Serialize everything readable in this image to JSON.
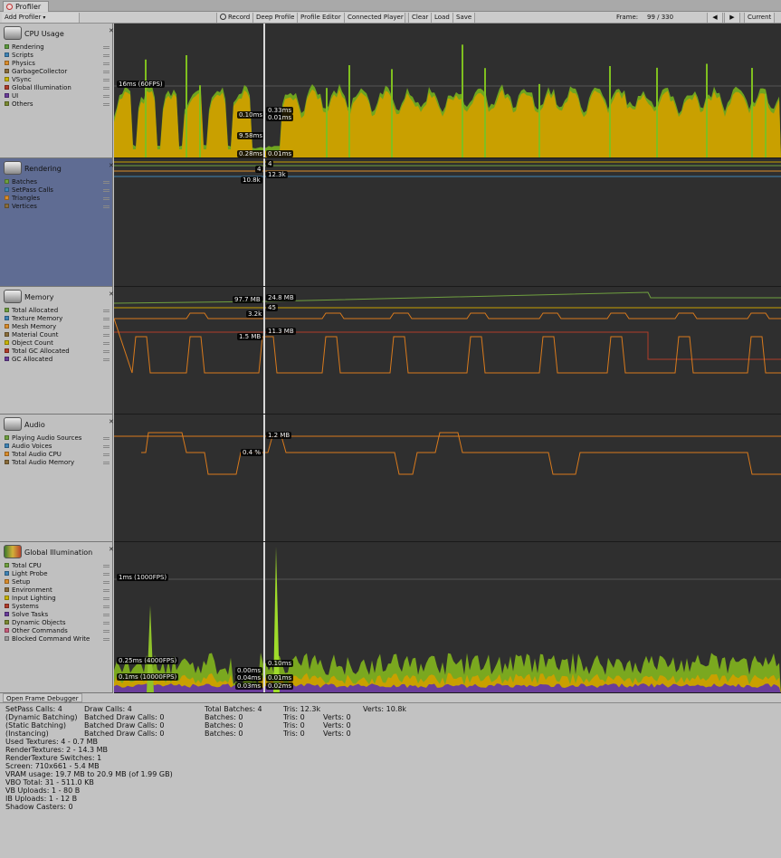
{
  "window": {
    "tab": "Profiler"
  },
  "toolbar": {
    "add_profiler": "Add Profiler",
    "record": "Record",
    "deep_profile": "Deep Profile",
    "profile_editor": "Profile Editor",
    "connected_player": "Connected Player",
    "clear": "Clear",
    "load": "Load",
    "save": "Save",
    "frame_label": "Frame:",
    "frame_value": "99 / 330",
    "prev": "◀",
    "next": "▶",
    "current": "Current"
  },
  "modules": {
    "cpu": {
      "title": "CPU Usage",
      "legend": [
        {
          "label": "Rendering",
          "color": "#5c9a3e"
        },
        {
          "label": "Scripts",
          "color": "#3f84b6"
        },
        {
          "label": "Physics",
          "color": "#d98c2b"
        },
        {
          "label": "GarbageCollector",
          "color": "#8a6d3b"
        },
        {
          "label": "VSync",
          "color": "#c9b400"
        },
        {
          "label": "Global Illumination",
          "color": "#b03c2a"
        },
        {
          "label": "UI",
          "color": "#6a3d9a"
        },
        {
          "label": "Others",
          "color": "#7a8a32"
        }
      ],
      "fps_line": "16ms (60FPS)",
      "labels": [
        "0.10ms",
        "0.33ms",
        "0.01ms",
        "9.58ms",
        "0.28ms",
        "0.01ms"
      ]
    },
    "rendering": {
      "title": "Rendering",
      "legend": [
        {
          "label": "Batches",
          "color": "#6fa03f"
        },
        {
          "label": "SetPass Calls",
          "color": "#3f84b6"
        },
        {
          "label": "Triangles",
          "color": "#d98c2b"
        },
        {
          "label": "Vertices",
          "color": "#8a6d3b"
        }
      ],
      "labels": [
        "4",
        "4",
        "12.3k",
        "10.8k"
      ]
    },
    "memory": {
      "title": "Memory",
      "legend": [
        {
          "label": "Total Allocated",
          "color": "#6fa03f"
        },
        {
          "label": "Texture Memory",
          "color": "#3f84b6"
        },
        {
          "label": "Mesh Memory",
          "color": "#d98c2b"
        },
        {
          "label": "Material Count",
          "color": "#8a6d3b"
        },
        {
          "label": "Object Count",
          "color": "#c9b400"
        },
        {
          "label": "Total GC Allocated",
          "color": "#b03c2a"
        },
        {
          "label": "GC Allocated",
          "color": "#6a3d9a"
        }
      ],
      "labels": [
        "97.7 MB",
        "24.8 MB",
        "45",
        "3.2k",
        "11.3 MB",
        "1.5 MB"
      ]
    },
    "audio": {
      "title": "Audio",
      "legend": [
        {
          "label": "Playing Audio Sources",
          "color": "#6fa03f"
        },
        {
          "label": "Audio Voices",
          "color": "#3f84b6"
        },
        {
          "label": "Total Audio CPU",
          "color": "#d98c2b"
        },
        {
          "label": "Total Audio Memory",
          "color": "#8a6d3b"
        }
      ],
      "labels": [
        "1.2 MB",
        "0.4 %"
      ]
    },
    "gi": {
      "title": "Global Illumination",
      "legend": [
        {
          "label": "Total CPU",
          "color": "#6fa03f"
        },
        {
          "label": "Light Probe",
          "color": "#3f84b6"
        },
        {
          "label": "Setup",
          "color": "#d98c2b"
        },
        {
          "label": "Environment",
          "color": "#8a6d3b"
        },
        {
          "label": "Input Lighting",
          "color": "#c9b400"
        },
        {
          "label": "Systems",
          "color": "#b03c2a"
        },
        {
          "label": "Solve Tasks",
          "color": "#6a3d9a"
        },
        {
          "label": "Dynamic Objects",
          "color": "#7a8a32"
        },
        {
          "label": "Other Commands",
          "color": "#c75b7a"
        },
        {
          "label": "Blocked Command Write",
          "color": "#9a9a9a"
        }
      ],
      "fps_line": "1ms (1000FPS)",
      "labels": [
        "0.25ms (4000FPS)",
        "0.1ms (10000FPS)",
        "0.10ms",
        "0.00ms",
        "0.01ms",
        "0.04ms",
        "0.02ms",
        "0.03ms"
      ]
    }
  },
  "frame_debugger": "Open Frame Debugger",
  "stats": {
    "col1": [
      "SetPass Calls: 4",
      "(Dynamic Batching)",
      "(Static Batching)",
      "(Instancing)",
      "Used Textures: 4 - 0.7 MB",
      "RenderTextures: 2 - 14.3 MB",
      "RenderTexture Switches: 1",
      "Screen: 710x661 - 5.4 MB",
      "VRAM usage: 19.7 MB to 20.9 MB (of 1.99 GB)",
      "VBO Total: 31 - 511.0 KB",
      "VB Uploads: 1 - 80 B",
      "IB Uploads: 1 - 12 B",
      "Shadow Casters: 0"
    ],
    "col2": [
      "Draw Calls: 4",
      "Batched Draw Calls: 0",
      "Batched Draw Calls: 0",
      "Batched Draw Calls: 0"
    ],
    "col3": [
      "Total Batches: 4",
      "Batches: 0",
      "Batches: 0",
      "Batches: 0"
    ],
    "col4": [
      "Tris: 12.3k",
      "Tris: 0",
      "Tris: 0",
      "Tris: 0"
    ],
    "col5": [
      "Verts: 10.8k",
      "Verts: 0",
      "Verts: 0",
      "Verts: 0"
    ]
  },
  "colors": {
    "cpu_main": "#c9a000",
    "cpu_green": "#6fa51f",
    "memory_line": "#d97a1c",
    "plot_bg": "#2f2f2f",
    "selected_module": "#5f6c93"
  }
}
